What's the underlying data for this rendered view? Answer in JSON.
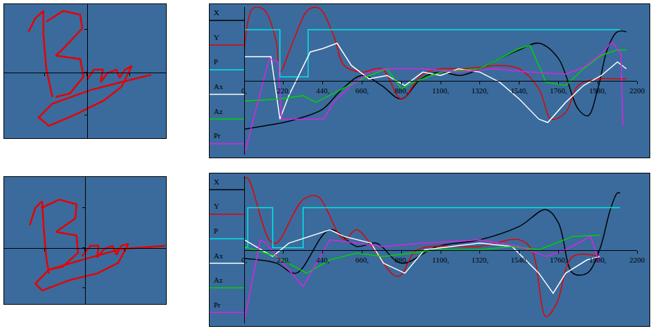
{
  "chart_data": [
    {
      "type": "line",
      "tick_labels": false,
      "grid": false,
      "xlim": [
        -1.94,
        1.85
      ],
      "ylim": [
        -1.55,
        1.6
      ],
      "xticks": [
        -1,
        0,
        1
      ],
      "yticks": [
        -1,
        0,
        1
      ],
      "series": [
        {
          "color": "#e80000",
          "line_style": "solid",
          "x": [
            -1.37,
            -1.21,
            -1.02,
            -1.02,
            -0.95,
            -0.81,
            null,
            -0.95,
            -0.56,
            -0.16,
            -0.11,
            -0.56,
            -0.73,
            -0.16,
            -0.08,
            -0.4,
            -0.73,
            null,
            0,
            0.16,
            0.37,
            0.32,
            0.48,
            0.69,
            0.76,
            0.89,
            1.05,
            0.81,
            0.4,
            -0.24,
            -0.89,
            -1.13,
            -0.81,
            0.08,
            0.81,
            1.5
          ],
          "values": [
            0.95,
            1.27,
            1.44,
            0.87,
            0.06,
            -0.58,
            null,
            1.19,
            1.44,
            1.35,
            1.03,
            0.55,
            0.39,
            0.31,
            -0.1,
            -0.5,
            -0.58,
            null,
            -0.18,
            0.06,
            0.06,
            -0.23,
            -0.02,
            0.06,
            -0.13,
            0.06,
            0.15,
            -0.34,
            -0.66,
            -0.98,
            -1.26,
            -1.06,
            -0.74,
            -0.42,
            -0.23,
            -0.06
          ]
        }
      ]
    },
    {
      "type": "line",
      "tick_labels": "x",
      "grid": false,
      "legend": "left",
      "xlim": [
        0,
        2200
      ],
      "ylim": [
        -1.1,
        1.1
      ],
      "xticks": [
        {
          "value": 0,
          "label": "0,"
        },
        {
          "value": 220,
          "label": "220,"
        },
        {
          "value": 440,
          "label": "440,"
        },
        {
          "value": 660,
          "label": "660,"
        },
        {
          "value": 880,
          "label": "880,"
        },
        {
          "value": 1100,
          "label": "1100,"
        },
        {
          "value": 1320,
          "label": "1320,"
        },
        {
          "value": 1540,
          "label": "1540,"
        },
        {
          "value": 1760,
          "label": "1760,"
        },
        {
          "value": 1980,
          "label": "1980,"
        },
        2200
      ],
      "yticks": [],
      "series": [
        {
          "name": "X",
          "color": "#000000",
          "line_style": "smooth",
          "x": [
            0,
            110,
            220,
            330,
            440,
            550,
            660,
            770,
            880,
            990,
            1100,
            1210,
            1320,
            1430,
            1540,
            1650,
            1760,
            1870,
            1925,
            1980,
            2035,
            2090,
            2140
          ],
          "values": [
            -0.72,
            -0.67,
            -0.62,
            -0.54,
            -0.42,
            -0.12,
            0.08,
            -0.07,
            -0.27,
            0.03,
            0.13,
            0.08,
            0.18,
            0.33,
            0.46,
            0.56,
            0.33,
            -0.42,
            -0.52,
            -0.12,
            0.48,
            0.73,
            0.73
          ]
        },
        {
          "name": "Y",
          "color": "#e80000",
          "line_style": "smooth",
          "x": [
            0,
            50,
            110,
            180,
            200,
            280,
            360,
            420,
            500,
            560,
            660,
            770,
            880,
            990,
            1100,
            1210,
            1320,
            1430,
            1540,
            1650,
            1720,
            1800,
            1870,
            1980,
            2090,
            2140
          ],
          "values": [
            0.43,
            1.08,
            1.06,
            0.58,
            0.13,
            0.63,
            1.06,
            1.08,
            0.68,
            0.23,
            0.13,
            0.18,
            -0.27,
            0.08,
            0.18,
            0.18,
            0.2,
            0.23,
            0.18,
            -0.12,
            -0.57,
            -0.47,
            -0.07,
            0.03,
            0.03,
            0.03
          ]
        },
        {
          "name": "P",
          "color": "#00e8e8",
          "line_style": "solid",
          "x": [
            0,
            0,
            200,
            200,
            358,
            358,
            2105
          ],
          "values": [
            0.06,
            0.76,
            0.76,
            0.06,
            0.06,
            0.76,
            0.76
          ]
        },
        {
          "name": "Ax",
          "color": "#ffffff",
          "line_style": "solid",
          "x": [
            0,
            150,
            200,
            250,
            370,
            440,
            520,
            600,
            700,
            800,
            900,
            1000,
            1100,
            1200,
            1320,
            1430,
            1540,
            1650,
            1700,
            1800,
            1900,
            2000,
            2090,
            2140
          ],
          "values": [
            0.36,
            0.36,
            -0.57,
            -0.22,
            0.43,
            0.48,
            0.56,
            0.23,
            0.03,
            0.08,
            -0.07,
            0.13,
            0.08,
            0.18,
            0.13,
            -0.02,
            -0.27,
            -0.57,
            -0.62,
            -0.32,
            -0.07,
            0.08,
            0.28,
            0.18
          ]
        },
        {
          "name": "Az",
          "color": "#00d400",
          "line_style": "solid",
          "x": [
            0,
            200,
            330,
            400,
            550,
            700,
            800,
            880,
            950,
            1100,
            1320,
            1430,
            1540,
            1600,
            1690,
            1800,
            1900,
            2000,
            2090,
            2140
          ],
          "values": [
            -0.3,
            -0.27,
            -0.22,
            -0.32,
            -0.12,
            0.08,
            0.18,
            -0.12,
            -0.02,
            0.13,
            0.18,
            0.33,
            0.48,
            0.53,
            -0.02,
            -0.07,
            0.18,
            0.38,
            0.46,
            0.46
          ]
        },
        {
          "name": "Pr",
          "color": "#e020e8",
          "line_style": "solid",
          "x": [
            0,
            60,
            140,
            190,
            210,
            445,
            500,
            600,
            700,
            800,
            1000,
            1200,
            1400,
            1600,
            1800,
            1900,
            2000,
            2060,
            2110,
            2120
          ],
          "values": [
            -1.1,
            -0.5,
            0.33,
            0.28,
            -0.57,
            -0.57,
            -0.32,
            -0.07,
            0.13,
            0.18,
            0.18,
            0.13,
            0.18,
            0.13,
            0.1,
            0.2,
            0.4,
            0.58,
            0.4,
            -0.67
          ]
        }
      ]
    },
    {
      "type": "line",
      "tick_labels": false,
      "grid": false,
      "xlim": [
        -2.02,
        2.03
      ],
      "ylim": [
        -1.41,
        1.78
      ],
      "xticks": [
        -1,
        0,
        1
      ],
      "yticks": [
        -1,
        0,
        1
      ],
      "series": [
        {
          "color": "#e80000",
          "line_style": "solid",
          "x": [
            -1.38,
            -1.24,
            -1.07,
            -1.03,
            -0.97,
            -0.9,
            null,
            -1.1,
            -0.64,
            -0.21,
            -0.24,
            -0.72,
            -0.21,
            -0.17,
            -0.55,
            -0.9,
            null,
            -0.07,
            0.14,
            0.34,
            0.31,
            0.48,
            0.69,
            0.79,
            0.91,
            1.09,
            0.83,
            0.31,
            -0.38,
            -1.07,
            -1.24,
            -0.9,
            -0.03,
            0.91,
            2.0
          ],
          "values": [
            0.57,
            1.0,
            1.17,
            0.48,
            -0.21,
            -0.64,
            null,
            1.0,
            1.21,
            1.09,
            0.74,
            0.4,
            0.31,
            -0.12,
            -0.47,
            -0.55,
            null,
            -0.21,
            0.05,
            0.05,
            -0.24,
            -0.03,
            0.05,
            -0.17,
            0.05,
            0.1,
            -0.38,
            -0.64,
            -0.81,
            -1.07,
            -0.9,
            -0.55,
            -0.29,
            -0.03,
            0.05
          ]
        }
      ]
    },
    {
      "type": "line",
      "tick_labels": "x",
      "grid": false,
      "legend": "left",
      "xlim": [
        0,
        2200
      ],
      "ylim": [
        -1.1,
        1.1
      ],
      "xticks": [
        {
          "value": 0,
          "label": "0,"
        },
        {
          "value": 220,
          "label": "220,"
        },
        {
          "value": 440,
          "label": "440,"
        },
        {
          "value": 660,
          "label": "660,"
        },
        {
          "value": 880,
          "label": "880,"
        },
        {
          "value": 1100,
          "label": "1100,"
        },
        {
          "value": 1320,
          "label": "1320,"
        },
        {
          "value": 1540,
          "label": "1540,"
        },
        {
          "value": 1760,
          "label": "1760,"
        },
        {
          "value": 1980,
          "label": "1980,"
        },
        2200
      ],
      "yticks": [],
      "series": [
        {
          "name": "X",
          "color": "#000000",
          "line_style": "smooth",
          "x": [
            0,
            180,
            290,
            480,
            630,
            740,
            880,
            1080,
            1320,
            1540,
            1690,
            1760,
            1840,
            1920,
            1990,
            2050,
            2090,
            2105
          ],
          "values": [
            -0.13,
            -0.2,
            -0.35,
            0.3,
            0.05,
            0.1,
            -0.2,
            0.05,
            0.15,
            0.35,
            0.6,
            0.4,
            -0.35,
            -0.35,
            0,
            0.6,
            0.85,
            0.85
          ]
        },
        {
          "name": "Y",
          "color": "#e80000",
          "line_style": "smooth",
          "x": [
            0,
            20,
            140,
            180,
            330,
            410,
            560,
            630,
            860,
            970,
            1320,
            1540,
            1610,
            1690,
            1750,
            1840,
            1990
          ],
          "values": [
            1.07,
            1.07,
            0.15,
            0.1,
            0.75,
            0.8,
            0.15,
            0.3,
            -0.4,
            0,
            0.05,
            0.15,
            0,
            -1.0,
            -0.8,
            -0.1,
            -0.1
          ]
        },
        {
          "name": "P",
          "color": "#00e8e8",
          "line_style": "solid",
          "x": [
            0,
            20,
            20,
            160,
            160,
            330,
            330,
            2105
          ],
          "values": [
            0.03,
            0.03,
            0.63,
            0.63,
            0.03,
            0.03,
            0.63,
            0.63
          ]
        },
        {
          "name": "Ax",
          "color": "#ffffff",
          "line_style": "solid",
          "x": [
            0,
            160,
            250,
            480,
            560,
            710,
            780,
            900,
            1010,
            1320,
            1500,
            1650,
            1730,
            1800,
            1920,
            1990
          ],
          "values": [
            0.15,
            -0.1,
            0.1,
            0.3,
            0.2,
            0.1,
            -0.2,
            -0.35,
            0,
            0.1,
            0.05,
            -0.35,
            -0.65,
            -0.35,
            -0.15,
            -0.1
          ]
        },
        {
          "name": "Az",
          "color": "#00d400",
          "line_style": "solid",
          "x": [
            0,
            180,
            350,
            480,
            630,
            780,
            935,
            1080,
            1320,
            1500,
            1650,
            1840,
            1990
          ],
          "values": [
            0.05,
            -0.1,
            -0.35,
            -0.15,
            -0.05,
            -0.1,
            -0.05,
            0,
            0,
            0.05,
            0,
            0.2,
            0.22
          ]
        },
        {
          "name": "Pr",
          "color": "#e020e8",
          "line_style": "solid",
          "x": [
            0,
            90,
            120,
            330,
            480,
            780,
            1010,
            1320,
            1540,
            1690,
            1800,
            1940,
            1990
          ],
          "values": [
            -1.08,
            0.15,
            0.1,
            -0.55,
            0.15,
            0.05,
            0.1,
            0.15,
            0.05,
            -0.1,
            0,
            0.2,
            -0.2
          ]
        }
      ]
    }
  ]
}
